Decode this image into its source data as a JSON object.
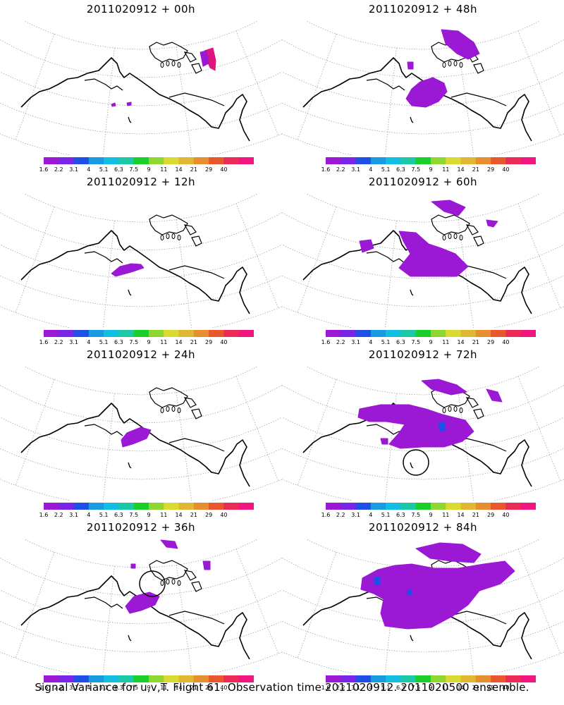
{
  "panels": [
    {
      "title": "2011020912 + 00h",
      "overlays": [
        {
          "shape": "poly",
          "color": "#e0147f",
          "pts": [
            [
              290,
              72
            ],
            [
              302,
              68
            ],
            [
              306,
              86
            ],
            [
              305,
              100
            ],
            [
              298,
              96
            ],
            [
              292,
              82
            ]
          ]
        },
        {
          "shape": "poly",
          "color": "#9b19d4",
          "pts": [
            [
              284,
              74
            ],
            [
              293,
              72
            ],
            [
              296,
              90
            ],
            [
              288,
              94
            ]
          ]
        },
        {
          "shape": "poly",
          "color": "#9b19d4",
          "pts": [
            [
              158,
              148
            ],
            [
              163,
              146
            ],
            [
              164,
              150
            ],
            [
              159,
              151
            ]
          ]
        },
        {
          "shape": "poly",
          "color": "#9b19d4",
          "pts": [
            [
              180,
              146
            ],
            [
              186,
              145
            ],
            [
              186,
              149
            ],
            [
              181,
              150
            ]
          ]
        }
      ]
    },
    {
      "title": "2011020912 + 48h",
      "overlays": [
        {
          "shape": "poly",
          "color": "#9b19d4",
          "pts": [
            [
              596,
              116
            ],
            [
              614,
              110
            ],
            [
              630,
              118
            ],
            [
              634,
              130
            ],
            [
              622,
              144
            ],
            [
              604,
              152
            ],
            [
              584,
              150
            ],
            [
              576,
              140
            ],
            [
              584,
              126
            ]
          ]
        },
        {
          "shape": "poly",
          "color": "#9b19d4",
          "pts": [
            [
              626,
              42
            ],
            [
              650,
              44
            ],
            [
              672,
              60
            ],
            [
              680,
              76
            ],
            [
              664,
              84
            ],
            [
              648,
              76
            ],
            [
              632,
              62
            ]
          ]
        },
        {
          "shape": "poly",
          "color": "#9b19d4",
          "pts": [
            [
              578,
              88
            ],
            [
              586,
              88
            ],
            [
              586,
              98
            ],
            [
              579,
              98
            ]
          ]
        }
      ]
    },
    {
      "title": "2011020912 + 12h",
      "overlays": [
        {
          "shape": "poly",
          "color": "#9b19d4",
          "pts": [
            [
              170,
              378
            ],
            [
              186,
              374
            ],
            [
              200,
              375
            ],
            [
              204,
              380
            ],
            [
              186,
              386
            ],
            [
              164,
              392
            ],
            [
              158,
              388
            ]
          ]
        }
      ]
    },
    {
      "title": "2011020912 + 60h",
      "overlays": [
        {
          "shape": "poly",
          "color": "#9b19d4",
          "pts": [
            [
              566,
              328
            ],
            [
              590,
              330
            ],
            [
              608,
              346
            ],
            [
              626,
              352
            ],
            [
              646,
              360
            ],
            [
              664,
              378
            ],
            [
              648,
              392
            ],
            [
              610,
              392
            ],
            [
              582,
              392
            ],
            [
              566,
              380
            ],
            [
              582,
              360
            ],
            [
              572,
              342
            ]
          ]
        },
        {
          "shape": "poly",
          "color": "#9b19d4",
          "pts": [
            [
              510,
              342
            ],
            [
              526,
              340
            ],
            [
              530,
              352
            ],
            [
              514,
              358
            ]
          ]
        },
        {
          "shape": "poly",
          "color": "#9b19d4",
          "pts": [
            [
              612,
              286
            ],
            [
              638,
              284
            ],
            [
              660,
              294
            ],
            [
              650,
              306
            ],
            [
              630,
              300
            ]
          ]
        },
        {
          "shape": "poly",
          "color": "#9b19d4",
          "pts": [
            [
              690,
              312
            ],
            [
              706,
              314
            ],
            [
              700,
              322
            ],
            [
              692,
              320
            ]
          ]
        }
      ]
    },
    {
      "title": "2011020912 + 24h",
      "overlays": [
        {
          "shape": "poly",
          "color": "#9b19d4",
          "pts": [
            [
              180,
              614
            ],
            [
              200,
              606
            ],
            [
              214,
              610
            ],
            [
              208,
              622
            ],
            [
              188,
              630
            ],
            [
              174,
              634
            ],
            [
              172,
              624
            ]
          ]
        }
      ]
    },
    {
      "title": "2011020912 + 72h",
      "overlays": [
        {
          "shape": "poly",
          "color": "#9b19d4",
          "pts": [
            [
              510,
              580
            ],
            [
              540,
              574
            ],
            [
              580,
              574
            ],
            [
              604,
              580
            ],
            [
              628,
              588
            ],
            [
              660,
              596
            ],
            [
              672,
              612
            ],
            [
              656,
              626
            ],
            [
              630,
              634
            ],
            [
              600,
              634
            ],
            [
              568,
              636
            ],
            [
              552,
              630
            ],
            [
              566,
              614
            ],
            [
              574,
              602
            ],
            [
              548,
              598
            ],
            [
              524,
              598
            ],
            [
              508,
              592
            ]
          ]
        },
        {
          "shape": "poly",
          "color": "#9b19d4",
          "pts": [
            [
              598,
              540
            ],
            [
              622,
              538
            ],
            [
              648,
              546
            ],
            [
              662,
              556
            ],
            [
              640,
              560
            ],
            [
              612,
              552
            ]
          ]
        },
        {
          "shape": "poly",
          "color": "#9b19d4",
          "pts": [
            [
              690,
              552
            ],
            [
              706,
              556
            ],
            [
              712,
              570
            ],
            [
              698,
              568
            ]
          ]
        },
        {
          "shape": "poly",
          "color": "#9b19d4",
          "pts": [
            [
              540,
              622
            ],
            [
              550,
              622
            ],
            [
              550,
              630
            ],
            [
              542,
              630
            ]
          ]
        },
        {
          "shape": "poly",
          "color": "#1f4fe8",
          "pts": [
            [
              622,
              600
            ],
            [
              630,
              598
            ],
            [
              632,
              610
            ],
            [
              624,
              612
            ]
          ]
        },
        {
          "shape": "circle",
          "cx": 590,
          "cy": 656,
          "r": 18
        }
      ]
    },
    {
      "title": "2011020912 + 36h",
      "overlays": [
        {
          "shape": "poly",
          "color": "#9b19d4",
          "pts": [
            [
              190,
              846
            ],
            [
              212,
              840
            ],
            [
              226,
              846
            ],
            [
              220,
              858
            ],
            [
              200,
              866
            ],
            [
              184,
              870
            ],
            [
              178,
              860
            ]
          ]
        },
        {
          "shape": "poly",
          "color": "#9b19d4",
          "pts": [
            [
              228,
              766
            ],
            [
              248,
              768
            ],
            [
              252,
              778
            ],
            [
              236,
              776
            ]
          ]
        },
        {
          "shape": "poly",
          "color": "#9b19d4",
          "pts": [
            [
              288,
              796
            ],
            [
              298,
              796
            ],
            [
              298,
              808
            ],
            [
              290,
              808
            ]
          ]
        },
        {
          "shape": "poly",
          "color": "#9b19d4",
          "pts": [
            [
              186,
              800
            ],
            [
              192,
              800
            ],
            [
              192,
              806
            ],
            [
              186,
              806
            ]
          ]
        },
        {
          "shape": "circle",
          "cx": 216,
          "cy": 828,
          "r": 18
        }
      ]
    },
    {
      "title": "2011020912 + 84h",
      "overlays": [
        {
          "shape": "poly",
          "color": "#9b19d4",
          "pts": [
            [
              514,
              820
            ],
            [
              536,
              808
            ],
            [
              560,
              802
            ],
            [
              584,
              800
            ],
            [
              616,
              806
            ],
            [
              650,
              806
            ],
            [
              686,
              800
            ],
            [
              716,
              796
            ],
            [
              730,
              810
            ],
            [
              710,
              828
            ],
            [
              680,
              838
            ],
            [
              664,
              858
            ],
            [
              642,
              874
            ],
            [
              612,
              890
            ],
            [
              578,
              892
            ],
            [
              546,
              888
            ],
            [
              540,
              870
            ],
            [
              544,
              850
            ],
            [
              530,
              842
            ],
            [
              512,
              836
            ]
          ]
        },
        {
          "shape": "poly",
          "color": "#9b19d4",
          "pts": [
            [
              590,
              778
            ],
            [
              624,
              770
            ],
            [
              656,
              772
            ],
            [
              682,
              786
            ],
            [
              672,
              798
            ],
            [
              640,
              796
            ],
            [
              610,
              792
            ]
          ]
        },
        {
          "shape": "poly",
          "color": "#1f4fe8",
          "pts": [
            [
              530,
              820
            ],
            [
              538,
              818
            ],
            [
              540,
              828
            ],
            [
              532,
              830
            ]
          ]
        },
        {
          "shape": "poly",
          "color": "#1f4fe8",
          "pts": [
            [
              578,
              838
            ],
            [
              584,
              836
            ],
            [
              584,
              844
            ],
            [
              578,
              844
            ]
          ]
        }
      ]
    }
  ],
  "colorbar": {
    "colors": [
      "#9b19d4",
      "#7a24e6",
      "#1f4fe8",
      "#199be0",
      "#12bfe0",
      "#1cc9a6",
      "#1bcf2a",
      "#8fd630",
      "#d9db31",
      "#e1b632",
      "#e58f2e",
      "#e8572e",
      "#ec2a56",
      "#f0157f"
    ],
    "labels": [
      "1.6",
      "2.2",
      "3.1",
      "4",
      "5.1",
      "6.3",
      "7.5",
      "9",
      "11",
      "14",
      "21",
      "29",
      "40"
    ]
  },
  "caption": "Signal Variance for u,v,T. Flight 61. Observation time 2011020912. 2011020500 ensemble."
}
